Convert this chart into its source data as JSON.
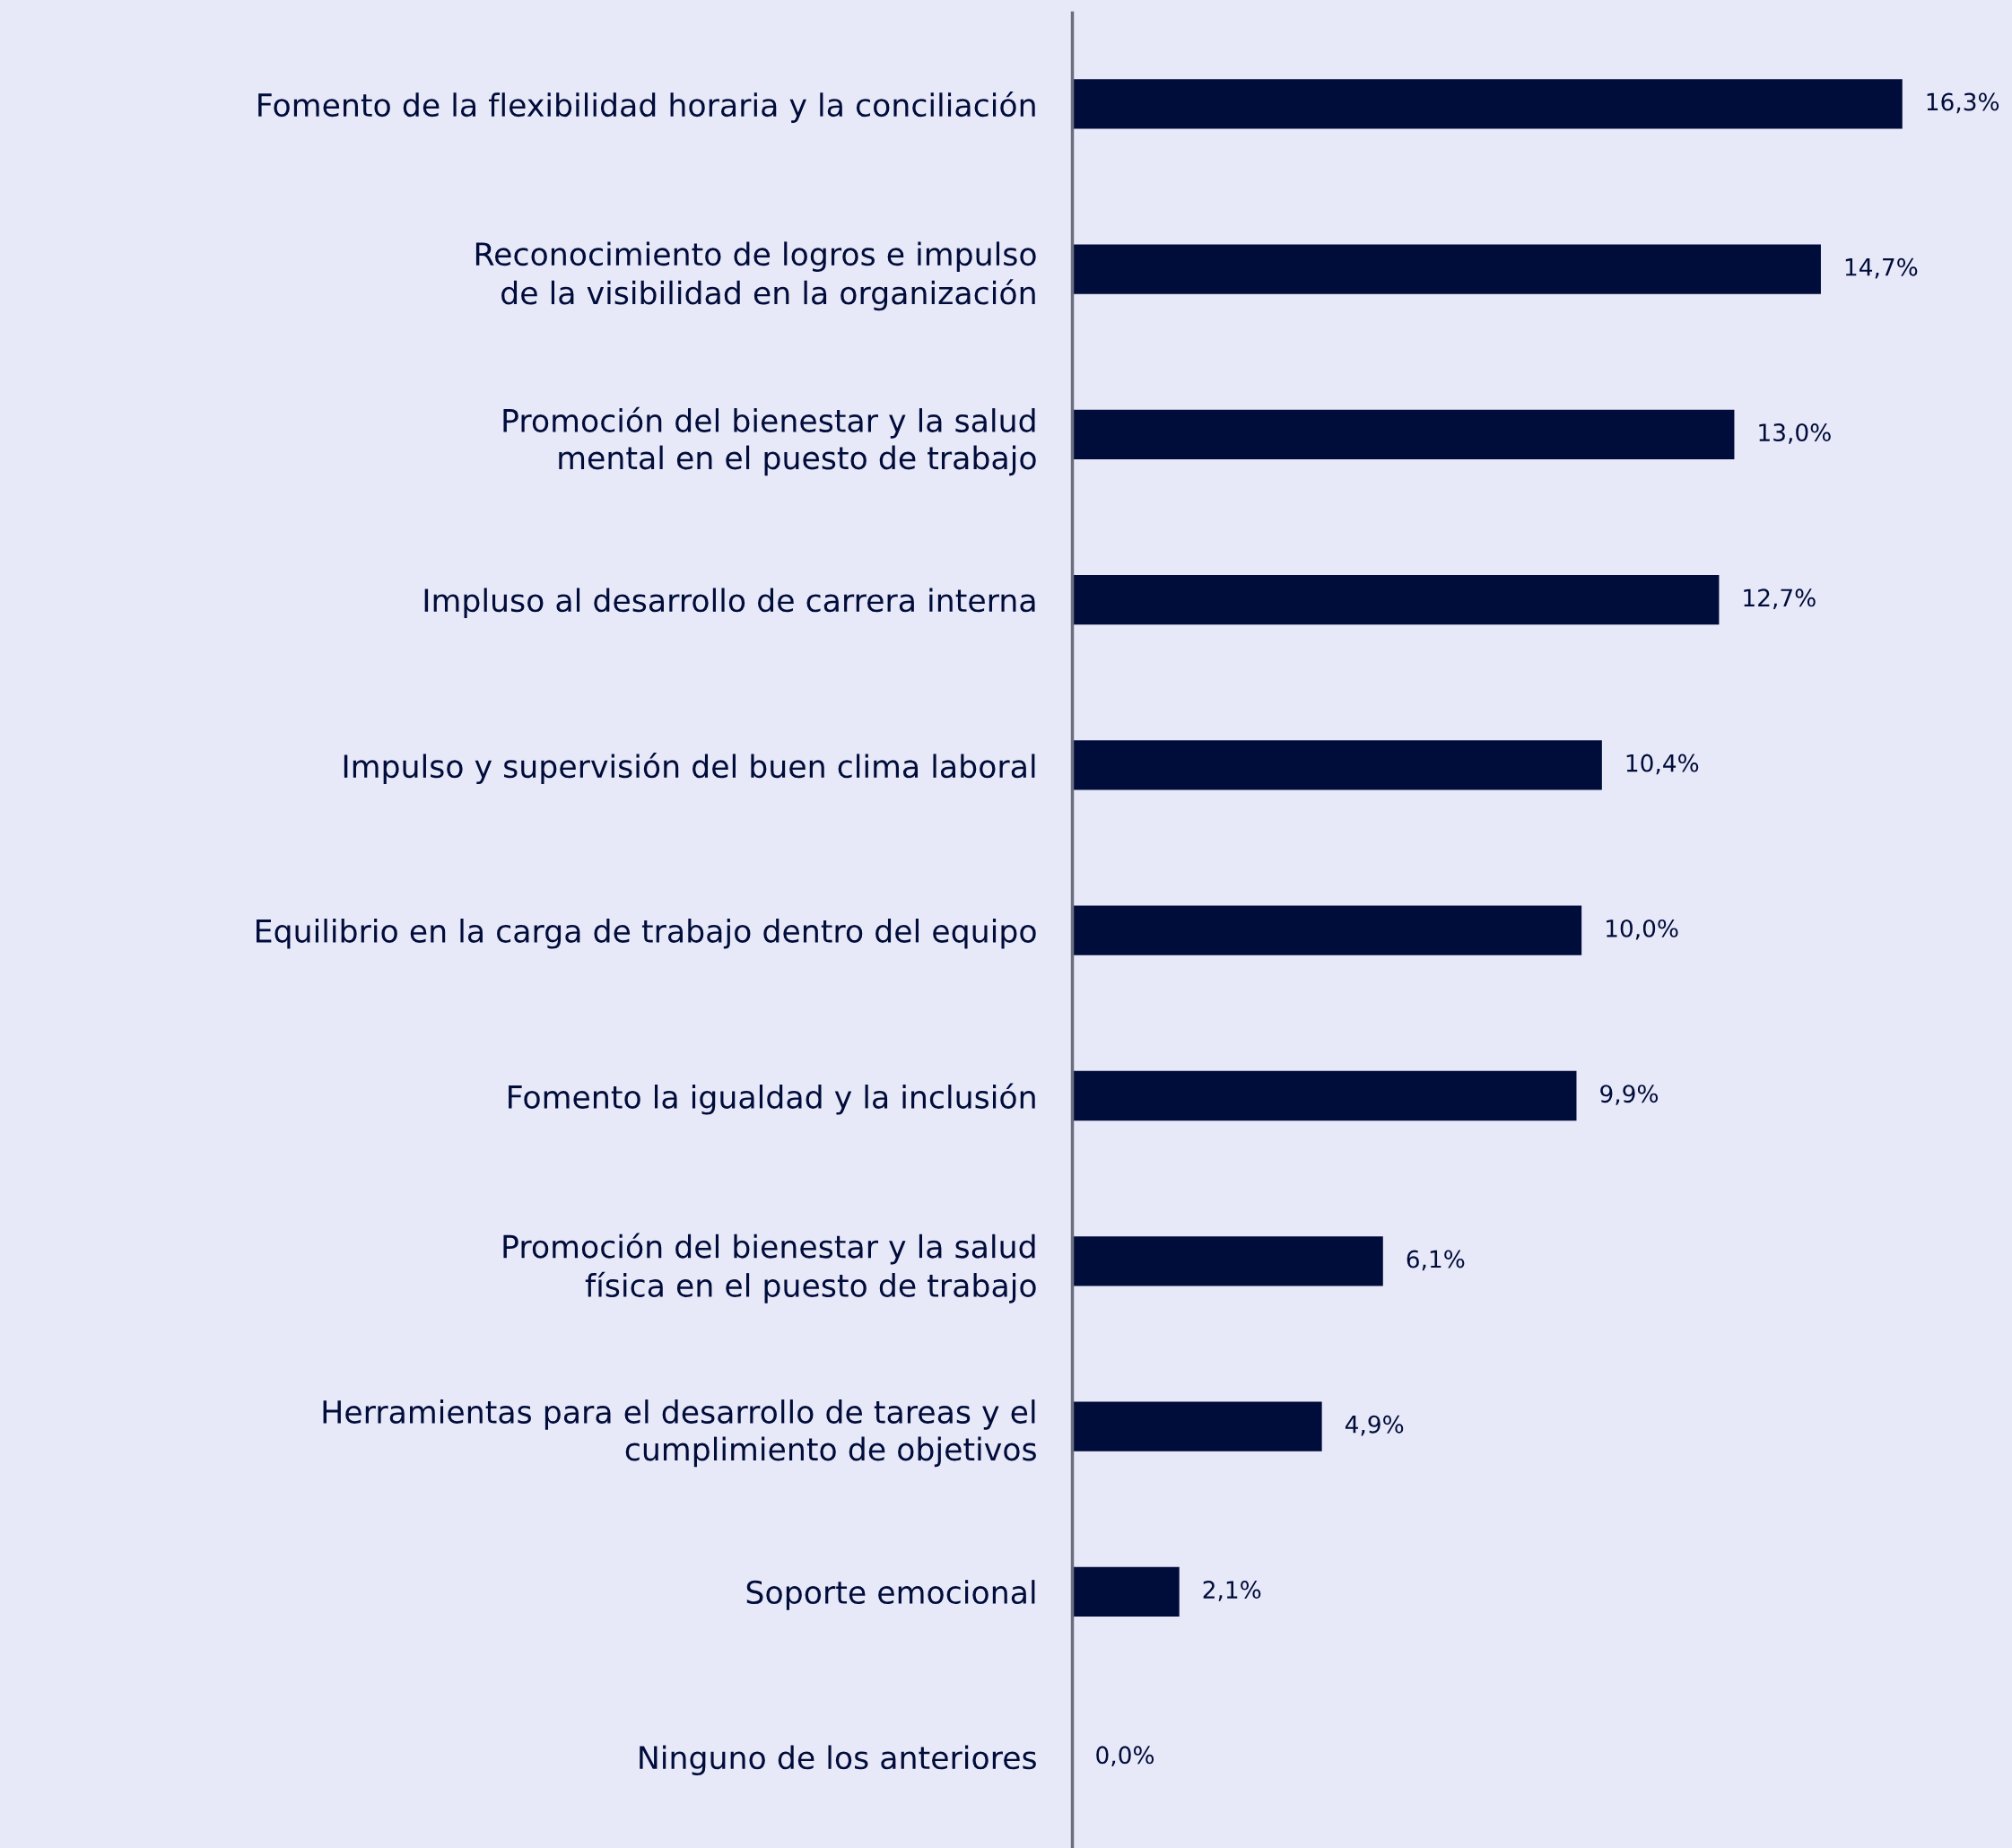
{
  "chart_data": {
    "type": "bar",
    "orientation": "horizontal",
    "categories": [
      "Fomento de la flexibilidad horaria y la conciliación",
      "Reconocimiento de logros e impulso\nde la visibilidad en la organización",
      "Promoción del bienestar y la salud\nmental en el puesto de trabajo",
      "Impluso al desarrollo de carrera interna",
      "Impulso y supervisión del buen clima laboral",
      "Equilibrio en la carga de trabajo dentro del equipo",
      "Fomento la igualdad y la inclusión",
      "Promoción del bienestar y la salud\nfísica en el puesto de trabajo",
      "Herramientas para el desarrollo de tareas y el\ncumplimiento de objetivos",
      "Soporte emocional",
      "Ninguno de los anteriores"
    ],
    "values": [
      16.3,
      14.7,
      13.0,
      12.7,
      10.4,
      10.0,
      9.9,
      6.1,
      4.9,
      2.1,
      0.0
    ],
    "value_labels": [
      "16,3%",
      "14,7%",
      "13,0%",
      "12,7%",
      "10,4%",
      "10,0%",
      "9,9%",
      "6,1%",
      "4,9%",
      "2,1%",
      "0,0%"
    ],
    "color": "#000c3a",
    "grid": false,
    "legend": false
  }
}
